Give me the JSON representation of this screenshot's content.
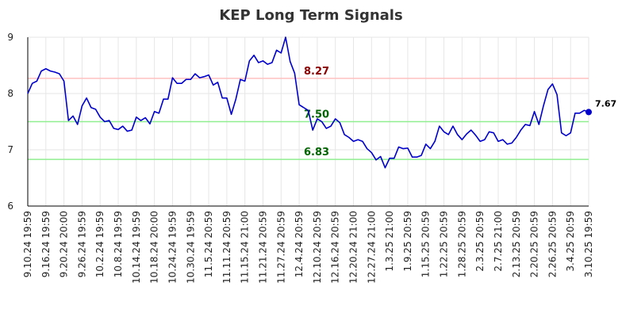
{
  "chart_data": {
    "type": "line",
    "title": "KEP Long Term Signals",
    "xlabel": "",
    "ylabel": "",
    "ylim": [
      6,
      9
    ],
    "yticks": [
      6,
      7,
      8,
      9
    ],
    "x_tick_labels": [
      "9.10.24 19:59",
      "9.16.24 19:59",
      "9.20.24 20:00",
      "9.26.24 19:59",
      "10.2.24 19:59",
      "10.8.24 19:59",
      "10.14.24 19:59",
      "10.18.24 20:00",
      "10.24.24 19:59",
      "10.30.24 19:59",
      "11.5.24 20:59",
      "11.11.24 20:59",
      "11.15.24 21:00",
      "11.21.24 20:59",
      "11.27.24 20:59",
      "12.4.24 20:59",
      "12.10.24 20:59",
      "12.16.24 20:59",
      "12.20.24 21:00",
      "12.27.24 21:00",
      "1.3.25 21:00",
      "1.9.25 20:59",
      "1.15.25 20:59",
      "1.22.25 20:59",
      "1.28.25 20:59",
      "2.3.25 20:59",
      "2.7.25 21:00",
      "2.13.25 20:59",
      "2.20.25 20:59",
      "2.26.25 20:59",
      "3.4.25 20:59",
      "3.10.25 19:59"
    ],
    "hlines": [
      {
        "value": 8.27,
        "label": "8.27",
        "line_color": "#ffc0c0",
        "text_color": "#8b0000"
      },
      {
        "value": 7.5,
        "label": "7.50",
        "line_color": "#90ee90",
        "text_color": "#006400"
      },
      {
        "value": 6.83,
        "label": "6.83",
        "line_color": "#90ee90",
        "text_color": "#006400"
      }
    ],
    "series": [
      {
        "name": "KEP",
        "color": "#0000cc",
        "values": [
          8.0,
          8.18,
          8.22,
          8.4,
          8.44,
          8.4,
          8.38,
          8.35,
          8.22,
          7.52,
          7.6,
          7.45,
          7.78,
          7.92,
          7.75,
          7.72,
          7.58,
          7.5,
          7.52,
          7.38,
          7.36,
          7.42,
          7.33,
          7.35,
          7.58,
          7.52,
          7.57,
          7.46,
          7.68,
          7.65,
          7.9,
          7.9,
          8.28,
          8.18,
          8.18,
          8.25,
          8.25,
          8.35,
          8.28,
          8.3,
          8.33,
          8.15,
          8.2,
          7.92,
          7.92,
          7.63,
          7.9,
          8.25,
          8.22,
          8.58,
          8.68,
          8.55,
          8.58,
          8.52,
          8.55,
          8.77,
          8.72,
          9.0,
          8.57,
          8.36,
          7.8,
          7.75,
          7.7,
          7.35,
          7.55,
          7.5,
          7.38,
          7.42,
          7.55,
          7.48,
          7.27,
          7.22,
          7.15,
          7.18,
          7.15,
          7.02,
          6.95,
          6.82,
          6.88,
          6.68,
          6.85,
          6.85,
          7.05,
          7.02,
          7.03,
          6.87,
          6.87,
          6.9,
          7.1,
          7.02,
          7.15,
          7.42,
          7.32,
          7.27,
          7.42,
          7.27,
          7.18,
          7.28,
          7.35,
          7.26,
          7.15,
          7.18,
          7.32,
          7.3,
          7.15,
          7.18,
          7.1,
          7.12,
          7.22,
          7.35,
          7.45,
          7.43,
          7.68,
          7.45,
          7.78,
          8.07,
          8.17,
          7.98,
          7.3,
          7.25,
          7.3,
          7.65,
          7.65,
          7.7,
          7.67
        ],
        "last_label": "7.67"
      }
    ]
  }
}
